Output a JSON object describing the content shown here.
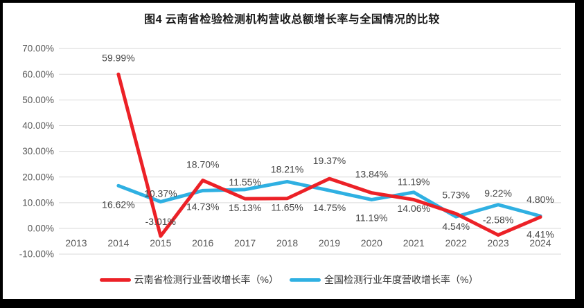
{
  "title": "图4 云南省检验检测机构营收总额增长率与全国情况的比较",
  "colors": {
    "background": "#ffffff",
    "frame": "#000000",
    "gridline": "#d9d9d9",
    "axis_text": "#595959",
    "label_text": "#444444",
    "title_text": "#1a1a1a",
    "series_red": "#ec2127",
    "series_blue": "#2fb0e2"
  },
  "chart_data": {
    "type": "line",
    "title": "图4 云南省检验检测机构营收总额增长率与全国情况的比较",
    "categories": [
      "2013",
      "2014",
      "2015",
      "2016",
      "2017",
      "2018",
      "2019",
      "2020",
      "2021",
      "2022",
      "2023",
      "2024"
    ],
    "series": [
      {
        "name": "全国检测行业年度营收增长率（%）",
        "color": "#2fb0e2",
        "values": [
          null,
          16.62,
          10.37,
          14.73,
          15.13,
          18.21,
          14.75,
          11.19,
          14.06,
          4.54,
          9.22,
          4.8
        ],
        "labels": [
          null,
          "16.62%",
          "10.37%",
          "14.73%",
          "15.13%",
          "18.21%",
          "14.75%",
          "11.19%",
          "14.06%",
          "4.54%",
          "9.22%",
          "4.80%"
        ],
        "label_dy": [
          null,
          32,
          -7,
          28,
          31,
          -13,
          30,
          31,
          28,
          19,
          -12,
          -19
        ]
      },
      {
        "name": "云南省检测行业营收增长率（%）",
        "color": "#ec2127",
        "values": [
          null,
          59.99,
          -3.01,
          18.7,
          11.55,
          11.65,
          19.37,
          13.84,
          11.19,
          5.73,
          -2.58,
          4.41
        ],
        "labels": [
          null,
          "59.99%",
          "-3.01%",
          "18.70%",
          "11.55%",
          "11.65%",
          "19.37%",
          "13.84%",
          "11.19%",
          "5.73%",
          "-2.58%",
          "4.41%"
        ],
        "label_dy": [
          null,
          -19,
          -16,
          -18,
          -19,
          18,
          -21,
          -22,
          -21,
          -22,
          -17,
          30
        ]
      }
    ],
    "y_axis": {
      "min": -10,
      "max": 70,
      "step": 10,
      "tick_labels": [
        "70.00%",
        "60.00%",
        "50.00%",
        "40.00%",
        "30.00%",
        "20.00%",
        "10.00%",
        "0.00%",
        "-10.00%"
      ]
    },
    "x_axis": {
      "tick_labels": [
        "2013",
        "2014",
        "2015",
        "2016",
        "2017",
        "2018",
        "2019",
        "2020",
        "2021",
        "2022",
        "2023",
        "2024"
      ]
    },
    "grid": true,
    "legend_position": "bottom",
    "legend": [
      {
        "label": "云南省检测行业营收增长率（%）",
        "color": "#ec2127"
      },
      {
        "label": "全国检测行业年度营收增长率（%）",
        "color": "#2fb0e2"
      }
    ]
  }
}
